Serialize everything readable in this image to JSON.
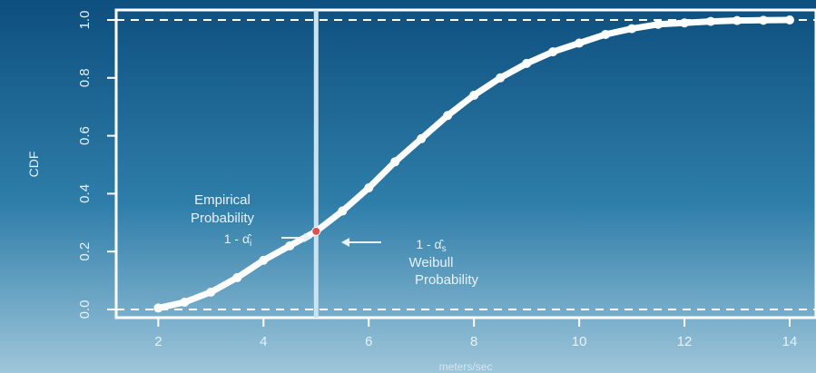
{
  "colors": {
    "background_top": "#0d4f7e",
    "background_bottom": "#9ec6da",
    "foreground": "#ffffff",
    "threshold_line": "#c8e3f2",
    "highlight_point": "#e05050"
  },
  "chart_data": {
    "type": "line",
    "title": "",
    "xlabel": "meters/sec",
    "ylabel": "CDF",
    "xlim": [
      1.2,
      14.5
    ],
    "ylim": [
      0.0,
      1.0
    ],
    "xticks": [
      2,
      4,
      6,
      8,
      10,
      12,
      14
    ],
    "yticks": [
      0.0,
      0.2,
      0.4,
      0.6,
      0.8,
      1.0
    ],
    "ytick_labels": [
      "0.0",
      "0.2",
      "0.4",
      "0.6",
      "0.8",
      "1.0"
    ],
    "grid": false,
    "reference_lines": [
      {
        "axis": "y",
        "value": 0.0,
        "style": "dashed"
      },
      {
        "axis": "y",
        "value": 1.0,
        "style": "dashed"
      },
      {
        "axis": "x",
        "value": 5.0,
        "style": "solid"
      }
    ],
    "series": [
      {
        "x": [
          2.0,
          2.5,
          3.0,
          3.5,
          4.0,
          4.5,
          5.0,
          5.5,
          6.0,
          6.5,
          7.0,
          7.5,
          8.0,
          8.5,
          9.0,
          9.5,
          10.0,
          10.5,
          11.0,
          11.5,
          12.0,
          12.5,
          13.0,
          13.5,
          14.0
        ],
        "y": [
          0.005,
          0.025,
          0.06,
          0.11,
          0.17,
          0.22,
          0.27,
          0.34,
          0.42,
          0.51,
          0.59,
          0.67,
          0.74,
          0.8,
          0.85,
          0.89,
          0.92,
          0.95,
          0.97,
          0.985,
          0.99,
          0.995,
          0.998,
          0.999,
          1.0
        ]
      }
    ],
    "highlight_point": {
      "x": 5.0,
      "y": 0.27
    },
    "annotations": {
      "empirical": {
        "line1": "Empirical",
        "line2": "Probability",
        "formula": "1 - α̂",
        "subscript": "i"
      },
      "weibull": {
        "formula": "1 - α̂",
        "subscript": "s",
        "line1": "Weibull",
        "line2": "Probability"
      }
    }
  }
}
